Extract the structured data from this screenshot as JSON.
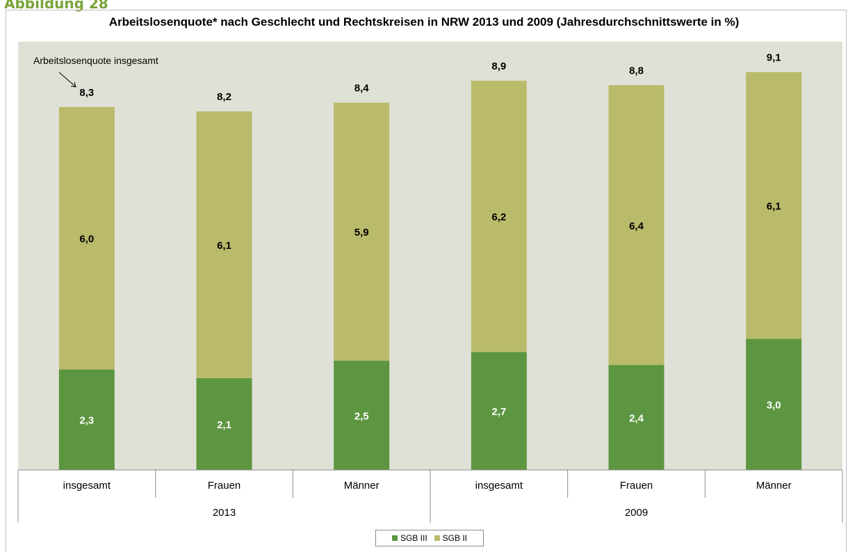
{
  "caption": "Abbildung 28",
  "chart_data": {
    "type": "bar",
    "stacked": true,
    "title": "Arbeitslosenquote* nach Geschlecht und Rechtskreisen in NRW 2013 und 2009 (Jahresdurchschnittswerte  in %)",
    "categories": [
      "insgesamt",
      "Frauen",
      "Männer",
      "insgesamt",
      "Frauen",
      "Männer"
    ],
    "groups": [
      {
        "label": "2013",
        "span": 3
      },
      {
        "label": "2009",
        "span": 3
      }
    ],
    "series": [
      {
        "name": "SGB III",
        "color": "#5d9640",
        "values": [
          2.3,
          2.1,
          2.5,
          2.7,
          2.4,
          3.0
        ]
      },
      {
        "name": "SGB II",
        "color": "#b9bb6b",
        "values": [
          6.0,
          6.1,
          5.9,
          6.2,
          6.4,
          6.1
        ]
      }
    ],
    "segment_labels": [
      [
        "2,3",
        "2,1",
        "2,5",
        "2,7",
        "2,4",
        "3,0"
      ],
      [
        "6,0",
        "6,1",
        "5,9",
        "6,2",
        "6,4",
        "6,1"
      ]
    ],
    "totals": [
      8.3,
      8.2,
      8.4,
      8.9,
      8.8,
      9.1
    ],
    "total_labels": [
      "8,3",
      "8,2",
      "8,4",
      "8,9",
      "8,8",
      "9,1"
    ],
    "annotation": "Arbeitslosenquote insgesamt",
    "ylim": [
      0,
      10
    ],
    "plot_background": "#e0e1d6",
    "legend_position": "bottom"
  }
}
